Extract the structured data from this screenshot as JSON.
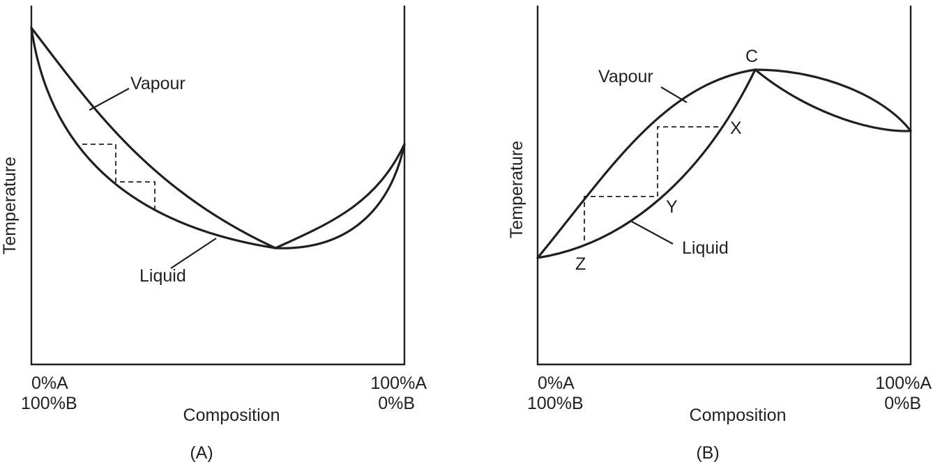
{
  "panel_a": {
    "caption": "(A)",
    "ylabel": "Temperature",
    "xlabel": "Composition",
    "left_tick": [
      "0%A",
      "100%B"
    ],
    "right_tick": [
      "100%A",
      "0%B"
    ],
    "vapour_label": "Vapour",
    "liquid_label": "Liquid"
  },
  "panel_b": {
    "caption": "(B)",
    "ylabel": "Temperature",
    "xlabel": "Composition",
    "left_tick": [
      "0%A",
      "100%B"
    ],
    "right_tick": [
      "100%A",
      "0%B"
    ],
    "vapour_label": "Vapour",
    "liquid_label": "Liquid",
    "point_c": "C",
    "point_x": "X",
    "point_y": "Y",
    "point_z": "Z"
  }
}
